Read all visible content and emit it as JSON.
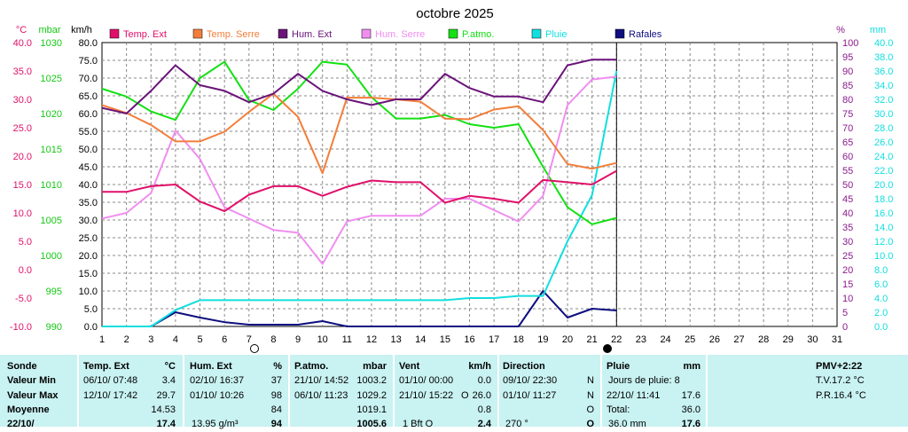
{
  "title": "octobre 2025",
  "units": {
    "c": "°C",
    "mbar": "mbar",
    "kmh": "km/h",
    "pct": "%",
    "mm": "mm"
  },
  "legend": [
    {
      "label": "Temp. Ext",
      "color": "#e0106a"
    },
    {
      "label": "Temp. Serre",
      "color": "#f27e3a"
    },
    {
      "label": "Hum. Ext",
      "color": "#6a1379"
    },
    {
      "label": "Hum. Serre",
      "color": "#f08ef0"
    },
    {
      "label": "P.atmo.",
      "color": "#14e014"
    },
    {
      "label": "Pluie",
      "color": "#12dede"
    },
    {
      "label": "Rafales",
      "color": "#0e0e80"
    }
  ],
  "chart_data": {
    "type": "line",
    "title": "octobre 2025",
    "x": [
      1,
      2,
      3,
      4,
      5,
      6,
      7,
      8,
      9,
      10,
      11,
      12,
      13,
      14,
      15,
      16,
      17,
      18,
      19,
      20,
      21,
      22,
      23,
      24,
      25,
      26,
      27,
      28,
      29,
      30,
      31
    ],
    "axes": {
      "temp_c": {
        "label": "°C",
        "range": [
          -10,
          40
        ],
        "ticks": [
          "40.0",
          "35.0",
          "30.0",
          "25.0",
          "20.0",
          "15.0",
          "10.0",
          "5.0",
          "0.0",
          "-5.0",
          "-10.0"
        ],
        "color": "#e0106a"
      },
      "pressure_mbar": {
        "label": "mbar",
        "range": [
          990,
          1030
        ],
        "ticks": [
          "1030",
          "1025",
          "1020",
          "1015",
          "1010",
          "1005",
          "1000",
          "995",
          "990"
        ],
        "color": "#14c814"
      },
      "wind_kmh": {
        "label": "km/h",
        "range": [
          0,
          80
        ],
        "ticks": [
          "80.0",
          "75.0",
          "70.0",
          "65.0",
          "60.0",
          "55.0",
          "50.0",
          "45.0",
          "40.0",
          "35.0",
          "30.0",
          "25.0",
          "20.0",
          "15.0",
          "10.0",
          "5.0",
          "0.0"
        ],
        "color": "#000000"
      },
      "humidity_pct": {
        "label": "%",
        "range": [
          0,
          100
        ],
        "ticks": [
          "100",
          "95",
          "90",
          "85",
          "80",
          "75",
          "70",
          "65",
          "60",
          "55",
          "50",
          "45",
          "40",
          "35",
          "30",
          "25",
          "20",
          "15",
          "10",
          "5",
          "0"
        ],
        "color": "#8b1a8b"
      },
      "rain_mm": {
        "label": "mm",
        "range": [
          0,
          40
        ],
        "ticks": [
          "40.0",
          "38.0",
          "36.0",
          "34.0",
          "32.0",
          "30.0",
          "28.0",
          "26.0",
          "24.0",
          "22.0",
          "20.0",
          "18.0",
          "16.0",
          "14.0",
          "12.0",
          "10.0",
          "8.0",
          "6.0",
          "4.0",
          "2.0",
          "0.0"
        ],
        "color": "#12dede"
      }
    },
    "series": [
      {
        "name": "Temp. Ext",
        "axis": "temp_c",
        "color": "#e0106a",
        "x": [
          1,
          2,
          3,
          4,
          5,
          6,
          7,
          8,
          9,
          10,
          11,
          12,
          13,
          14,
          15,
          16,
          17,
          18,
          19,
          20,
          21,
          22
        ],
        "values": [
          13.7,
          13.7,
          14.7,
          15.0,
          12.0,
          10.3,
          13.2,
          14.7,
          14.7,
          13.0,
          14.6,
          15.7,
          15.4,
          15.4,
          11.8,
          13.0,
          12.5,
          11.8,
          15.8,
          15.4,
          15.0,
          17.4
        ]
      },
      {
        "name": "Temp. Serre",
        "axis": "temp_c",
        "color": "#f27e3a",
        "x": [
          1,
          2,
          3,
          4,
          5,
          6,
          7,
          8,
          9,
          10,
          11,
          12,
          13,
          14,
          15,
          16,
          17,
          18,
          19,
          20,
          21,
          22
        ],
        "values": [
          29.0,
          27.6,
          25.5,
          22.6,
          22.6,
          24.3,
          27.8,
          31.0,
          26.9,
          17.0,
          30.3,
          30.3,
          30.0,
          29.6,
          26.6,
          26.5,
          28.2,
          28.8,
          24.6,
          18.6,
          17.8,
          18.8
        ]
      },
      {
        "name": "Hum. Ext",
        "axis": "humidity_pct",
        "color": "#6a1379",
        "x": [
          1,
          2,
          3,
          4,
          5,
          6,
          7,
          8,
          9,
          10,
          11,
          12,
          13,
          14,
          15,
          16,
          17,
          18,
          19,
          20,
          21,
          22
        ],
        "values": [
          77,
          75,
          83,
          92,
          85,
          83,
          79,
          82,
          89,
          83,
          80,
          78,
          80,
          80,
          89,
          84,
          81,
          81,
          79,
          92,
          94,
          94
        ]
      },
      {
        "name": "Hum. Serre",
        "axis": "humidity_pct",
        "color": "#f08ef0",
        "x": [
          1,
          2,
          3,
          4,
          5,
          6,
          7,
          8,
          9,
          10,
          11,
          12,
          13,
          14,
          15,
          16,
          17,
          18,
          19,
          20,
          21,
          22
        ],
        "values": [
          38,
          40,
          47,
          69,
          59,
          42,
          38,
          34,
          33,
          22,
          37,
          39,
          39,
          39,
          45,
          45,
          41,
          37,
          46,
          78,
          87,
          88
        ]
      },
      {
        "name": "P.atmo.",
        "axis": "pressure_mbar",
        "color": "#14e014",
        "x": [
          1,
          2,
          3,
          4,
          5,
          6,
          7,
          8,
          9,
          10,
          11,
          12,
          13,
          14,
          15,
          16,
          17,
          18,
          19,
          20,
          21,
          22
        ],
        "values": [
          1023.5,
          1022.4,
          1020.3,
          1019.1,
          1025.0,
          1027.3,
          1021.9,
          1020.5,
          1023.5,
          1027.3,
          1026.9,
          1022.3,
          1019.3,
          1019.3,
          1019.8,
          1018.5,
          1018.0,
          1018.5,
          1012.5,
          1006.8,
          1004.4,
          1005.3
        ]
      },
      {
        "name": "Pluie",
        "axis": "rain_mm",
        "color": "#12dede",
        "x": [
          1,
          2,
          3,
          4,
          5,
          6,
          7,
          8,
          9,
          10,
          11,
          12,
          13,
          14,
          15,
          16,
          17,
          18,
          19,
          20,
          21,
          22
        ],
        "values": [
          0,
          0,
          0,
          2.3,
          3.7,
          3.7,
          3.7,
          3.7,
          3.7,
          3.7,
          3.7,
          3.7,
          3.7,
          3.7,
          3.7,
          4.0,
          4.0,
          4.3,
          4.3,
          12.0,
          18.5,
          36.0
        ]
      },
      {
        "name": "Rafales",
        "axis": "wind_kmh",
        "color": "#0e0e80",
        "x": [
          1,
          2,
          3,
          4,
          5,
          6,
          7,
          8,
          9,
          10,
          11,
          12,
          13,
          14,
          15,
          16,
          17,
          18,
          19,
          20,
          21,
          22
        ],
        "values": [
          0,
          0,
          0,
          4.0,
          2.5,
          1.2,
          0.5,
          0.5,
          0.5,
          1.5,
          0,
          0,
          0,
          0,
          0,
          0,
          0,
          0,
          10.0,
          2.5,
          5.0,
          4.5
        ]
      }
    ],
    "grid": true,
    "markers": [
      "hollow-circle",
      "filled-circle"
    ]
  },
  "stats": {
    "sonde": {
      "title": "Sonde",
      "rows": [
        "Valeur Min",
        "Valeur Max",
        "Moyenne",
        "22/10/"
      ]
    },
    "temp": {
      "title": "Temp. Ext",
      "unit": "°C",
      "min_date": "06/10/  07:48",
      "min_val": "3.4",
      "max_date": "12/10/  17:42",
      "max_val": "29.7",
      "avg": "14.53",
      "current": "17.4"
    },
    "hum": {
      "title": "Hum. Ext",
      "unit": "%",
      "min_date": "02/10/  16:37",
      "min_val": "37",
      "max_date": "01/10/  10:26",
      "max_val": "98",
      "avg": "84",
      "cur_label": "13.95 g/m³",
      "current": "94"
    },
    "patmo": {
      "title": "P.atmo.",
      "unit": "mbar",
      "min_date": "21/10/  14:52",
      "min_val": "1003.2",
      "max_date": "06/10/  11:23",
      "max_val": "1029.2",
      "avg": "1019.1",
      "current": "1005.6"
    },
    "vent": {
      "title": "Vent",
      "unit": "km/h",
      "min_date": "01/10/  00:00",
      "min_val": "0.0",
      "max_date": "21/10/  15:22",
      "max_dir": "O",
      "max_val": "26.0",
      "avg": "0.8",
      "cur_label": "1 Bft O",
      "current": "2.4"
    },
    "direction": {
      "title": "Direction",
      "min_date": "09/10/  22:30",
      "min_val": "N",
      "max_date": "01/10/  11:27",
      "max_val": "N",
      "avg": "O",
      "cur_label": "270 °",
      "current": "O"
    },
    "pluie": {
      "title": "Pluie",
      "unit": "mm",
      "row1": "Jours de pluie: 8",
      "max_date": "22/10/  11:41",
      "max_val": "17.6",
      "total_label": "Total:",
      "total_val": "36.0",
      "cur_label": "36.0 mm",
      "current": "17.6"
    },
    "pmv": {
      "title": "PMV+2:22",
      "tv": "T.V.17.2 °C",
      "pr": "P.R.16.4 °C"
    }
  }
}
